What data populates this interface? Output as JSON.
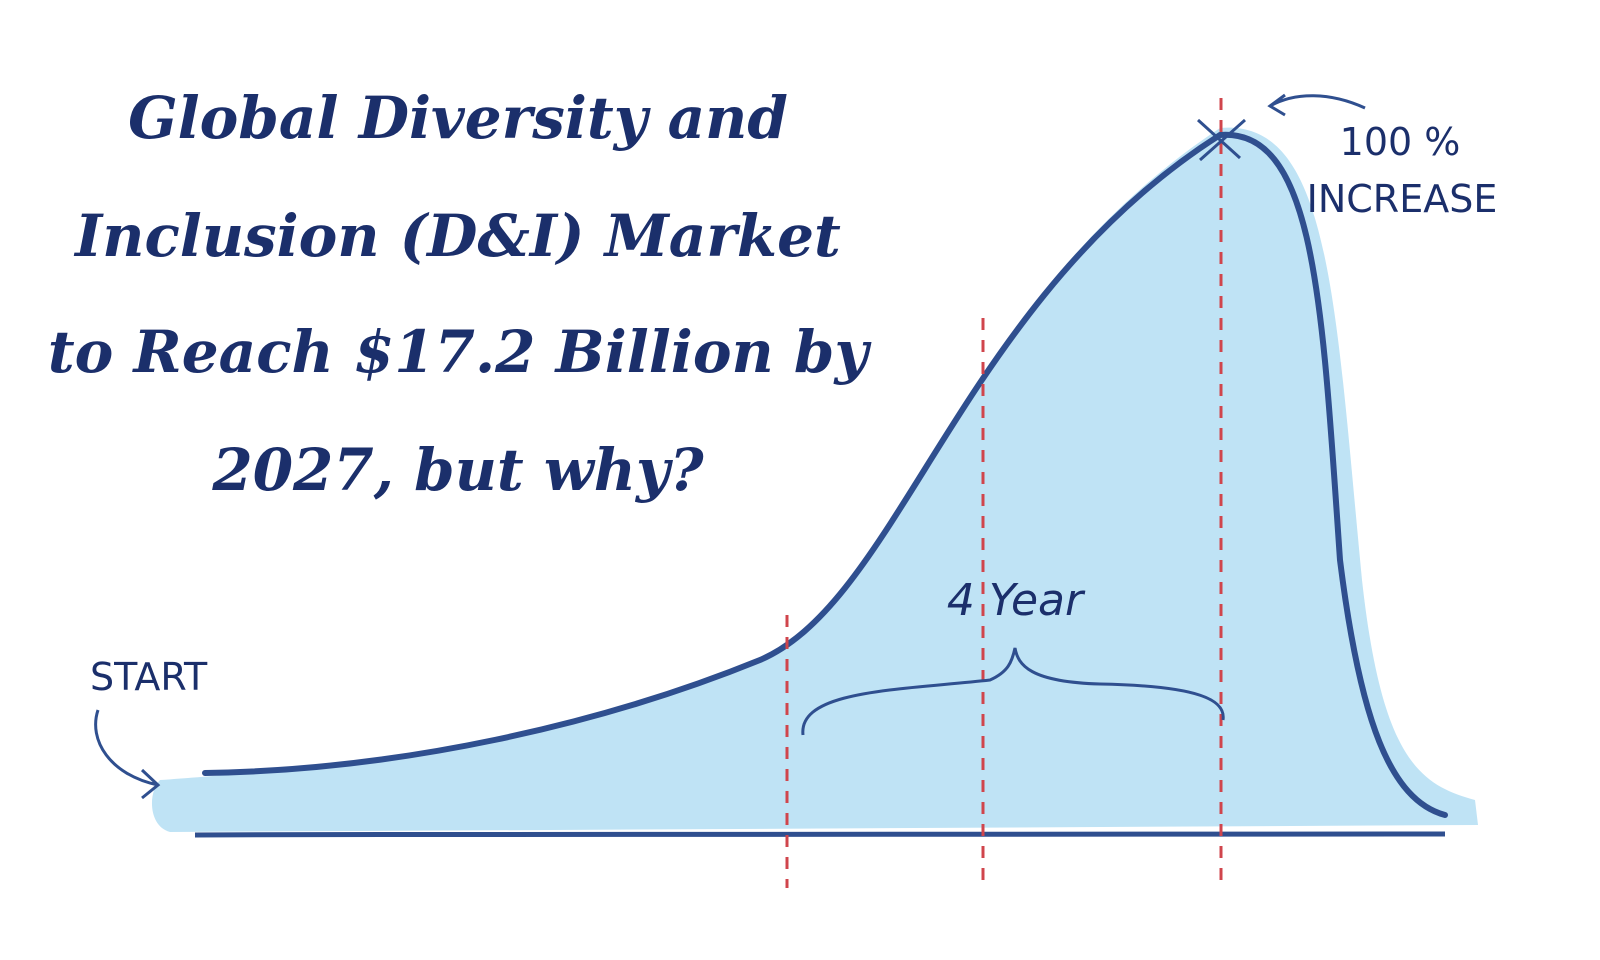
{
  "header": {
    "title_lines": [
      "Global Diversity and",
      "Inclusion (D&I) Market",
      "to Reach $17.2 Billion by",
      "2027, but why?"
    ]
  },
  "labels": {
    "start": "START",
    "span": "4 Year",
    "peak_top": "100 %",
    "peak_bottom": "INCREASE"
  }
}
